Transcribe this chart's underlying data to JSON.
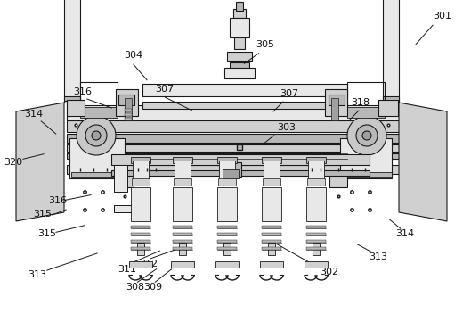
{
  "bg_color": "#ffffff",
  "lc": "#1a1a1a",
  "gray1": "#e8e8e8",
  "gray2": "#d0d0d0",
  "gray3": "#b8b8b8",
  "gray4": "#a0a0a0",
  "gray5": "#c8c8c8",
  "labels_info": [
    [
      "301",
      497,
      18,
      488,
      26,
      465,
      52
    ],
    [
      "302",
      370,
      305,
      358,
      300,
      308,
      272
    ],
    [
      "303",
      322,
      143,
      310,
      150,
      295,
      162
    ],
    [
      "304",
      150,
      62,
      148,
      70,
      167,
      92
    ],
    [
      "305",
      298,
      50,
      293,
      58,
      272,
      73
    ],
    [
      "307",
      185,
      100,
      183,
      108,
      218,
      125
    ],
    [
      "307",
      325,
      105,
      320,
      112,
      305,
      127
    ],
    [
      "308",
      152,
      322,
      152,
      318,
      178,
      300
    ],
    [
      "309",
      172,
      322,
      172,
      318,
      195,
      300
    ],
    [
      "311",
      143,
      302,
      143,
      297,
      182,
      280
    ],
    [
      "312",
      167,
      296,
      166,
      291,
      202,
      278
    ],
    [
      "313",
      42,
      308,
      50,
      304,
      112,
      283
    ],
    [
      "313",
      425,
      288,
      420,
      284,
      398,
      272
    ],
    [
      "314",
      38,
      128,
      44,
      134,
      65,
      152
    ],
    [
      "314",
      455,
      262,
      452,
      258,
      435,
      244
    ],
    [
      "315",
      48,
      240,
      56,
      242,
      77,
      234
    ],
    [
      "315",
      53,
      262,
      60,
      261,
      98,
      252
    ],
    [
      "316",
      93,
      103,
      95,
      110,
      128,
      122
    ],
    [
      "316",
      65,
      225,
      70,
      225,
      105,
      218
    ],
    [
      "318",
      405,
      115,
      405,
      122,
      390,
      137
    ],
    [
      "320",
      15,
      182,
      23,
      179,
      52,
      172
    ]
  ]
}
